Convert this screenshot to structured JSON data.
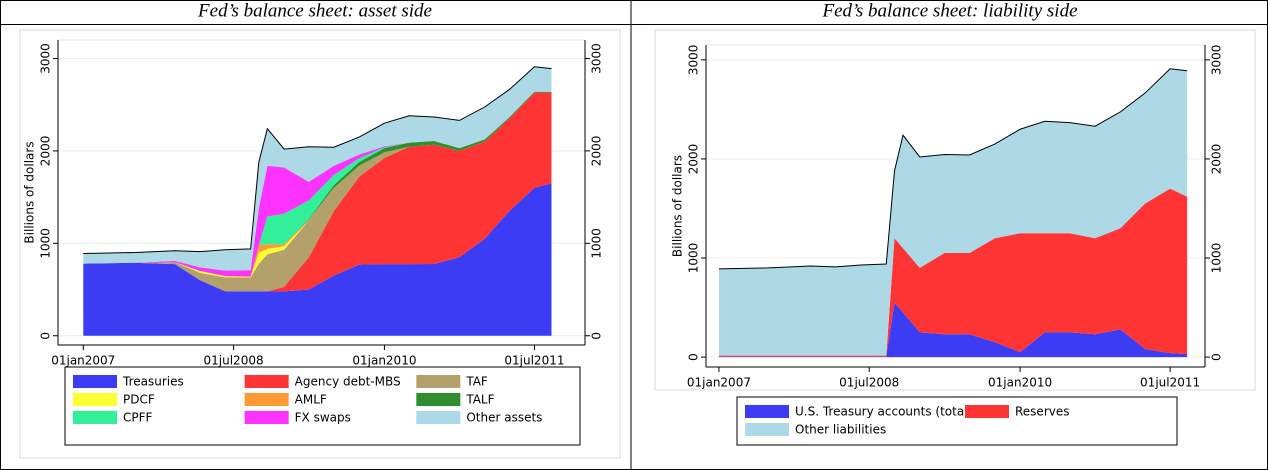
{
  "chart_data": [
    {
      "type": "stacked_area",
      "title": "Fed’s balance sheet: asset side",
      "ylabel": "Billions of dollars",
      "x": [
        "01jan2007",
        "01jul2007",
        "01dec2007",
        "01mar2008",
        "01jun2008",
        "01sep2008",
        "01oct2008",
        "01nov2008",
        "01jan2009",
        "01apr2009",
        "01jul2009",
        "01oct2009",
        "01jan2010",
        "01apr2010",
        "01jul2010",
        "01oct2010",
        "01jan2011",
        "01apr2011",
        "01jul2011",
        "01sep2011"
      ],
      "xlim": [
        "01oct2006",
        "01jan2012"
      ],
      "xticks": [
        "01jan2007",
        "01jul2008",
        "01jan2010",
        "01jul2011"
      ],
      "ylim": [
        -100,
        3200
      ],
      "yticks": [
        0,
        1000,
        2000,
        3000
      ],
      "grid": true,
      "legend": "bottom",
      "legend_columns": 3,
      "series": [
        {
          "name": "Treasuries",
          "color": "#3c3cf5",
          "values": [
            780,
            790,
            775,
            600,
            480,
            480,
            480,
            480,
            480,
            500,
            650,
            770,
            775,
            775,
            777,
            850,
            1050,
            1350,
            1600,
            1650
          ]
        },
        {
          "name": "Agency debt-MBS",
          "color": "#ff3535",
          "values": [
            0,
            0,
            0,
            0,
            0,
            0,
            0,
            0,
            50,
            350,
            700,
            950,
            1150,
            1270,
            1290,
            1150,
            1050,
            1000,
            1030,
            980
          ]
        },
        {
          "name": "TAF",
          "color": "#b4a06b",
          "values": [
            0,
            0,
            20,
            80,
            150,
            150,
            300,
            400,
            400,
            400,
            250,
            120,
            60,
            0,
            0,
            0,
            0,
            0,
            0,
            0
          ]
        },
        {
          "name": "PDCF",
          "color": "#ffff33",
          "values": [
            0,
            0,
            0,
            20,
            15,
            10,
            120,
            60,
            40,
            0,
            0,
            0,
            0,
            0,
            0,
            0,
            0,
            0,
            0,
            0
          ]
        },
        {
          "name": "AMLF",
          "color": "#ff9933",
          "values": [
            0,
            0,
            0,
            0,
            0,
            0,
            80,
            50,
            20,
            5,
            0,
            0,
            0,
            0,
            0,
            0,
            0,
            0,
            0,
            0
          ]
        },
        {
          "name": "TALF",
          "color": "#2f8f2f",
          "values": [
            0,
            0,
            0,
            0,
            0,
            0,
            0,
            0,
            0,
            10,
            30,
            40,
            45,
            45,
            40,
            30,
            25,
            15,
            10,
            10
          ]
        },
        {
          "name": "CPFF",
          "color": "#33ef99",
          "values": [
            0,
            0,
            0,
            0,
            0,
            0,
            0,
            300,
            330,
            200,
            110,
            40,
            10,
            0,
            0,
            0,
            0,
            0,
            0,
            0
          ]
        },
        {
          "name": "FX swaps",
          "color": "#ff33ff",
          "values": [
            0,
            0,
            15,
            40,
            60,
            70,
            400,
            550,
            500,
            200,
            100,
            40,
            10,
            0,
            0,
            0,
            0,
            0,
            0,
            0
          ]
        },
        {
          "name": "Other assets",
          "color": "#add8e6",
          "values": [
            110,
            110,
            110,
            170,
            225,
            230,
            500,
            400,
            200,
            380,
            200,
            190,
            250,
            290,
            260,
            300,
            350,
            300,
            270,
            250
          ]
        }
      ]
    },
    {
      "type": "stacked_area",
      "title": "Fed’s balance sheet: liability side",
      "ylabel": "Billions of dollars",
      "x": [
        "01jan2007",
        "01jul2007",
        "01dec2007",
        "01mar2008",
        "01jun2008",
        "01sep2008",
        "01oct2008",
        "01nov2008",
        "01jan2009",
        "01apr2009",
        "01jul2009",
        "01oct2009",
        "01jan2010",
        "01apr2010",
        "01jul2010",
        "01oct2010",
        "01jan2011",
        "01apr2011",
        "01jul2011",
        "01sep2011"
      ],
      "xlim": [
        "15nov2006",
        "05nov2011"
      ],
      "xticks": [
        "01jan2007",
        "01jul2008",
        "01jan2010",
        "01jul2011"
      ],
      "ylim": [
        -100,
        3150
      ],
      "yticks": [
        0,
        1000,
        2000,
        3000
      ],
      "grid": true,
      "legend": "bottom",
      "legend_columns": 2,
      "series": [
        {
          "name": "U.S. Treasury accounts (total)",
          "color": "#3c3cf5",
          "values": [
            5,
            5,
            5,
            5,
            5,
            5,
            550,
            450,
            250,
            230,
            230,
            150,
            50,
            250,
            250,
            230,
            280,
            80,
            40,
            30
          ]
        },
        {
          "name": "Reserves",
          "color": "#ff3535",
          "values": [
            10,
            10,
            10,
            10,
            10,
            10,
            650,
            650,
            650,
            820,
            820,
            1050,
            1200,
            1000,
            1000,
            970,
            1020,
            1470,
            1660,
            1590
          ]
        },
        {
          "name": "Other liabilities",
          "color": "#add8e6",
          "values": [
            875,
            885,
            905,
            895,
            915,
            925,
            680,
            1140,
            1120,
            995,
            990,
            950,
            1050,
            1130,
            1117,
            1130,
            1175,
            1115,
            1210,
            1270
          ]
        }
      ]
    }
  ]
}
